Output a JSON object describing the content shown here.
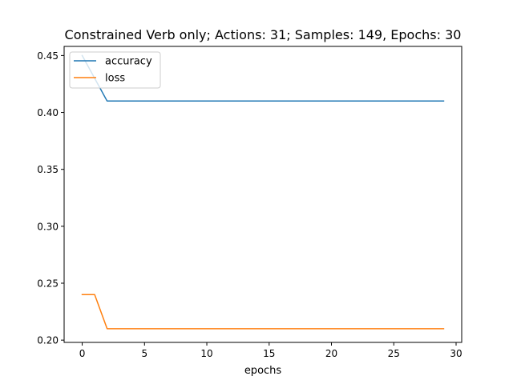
{
  "chart_data": {
    "type": "line",
    "title": "Constrained Verb only; Actions: 31; Samples: 149, Epochs: 30",
    "xlabel": "epochs",
    "ylabel": "",
    "xlim": [
      -1.45,
      30.45
    ],
    "ylim": [
      0.198,
      0.458
    ],
    "xticks": [
      0,
      5,
      10,
      15,
      20,
      25,
      30
    ],
    "yticks": [
      0.2,
      0.25,
      0.3,
      0.35,
      0.4,
      0.45
    ],
    "grid": false,
    "legend": "upper left",
    "x": [
      0,
      1,
      2,
      3,
      4,
      5,
      6,
      7,
      8,
      9,
      10,
      11,
      12,
      13,
      14,
      15,
      16,
      17,
      18,
      19,
      20,
      21,
      22,
      23,
      24,
      25,
      26,
      27,
      28,
      29
    ],
    "series": [
      {
        "name": "accuracy",
        "color": "#1f77b4",
        "values": [
          0.45,
          0.43,
          0.41,
          0.41,
          0.41,
          0.41,
          0.41,
          0.41,
          0.41,
          0.41,
          0.41,
          0.41,
          0.41,
          0.41,
          0.41,
          0.41,
          0.41,
          0.41,
          0.41,
          0.41,
          0.41,
          0.41,
          0.41,
          0.41,
          0.41,
          0.41,
          0.41,
          0.41,
          0.41,
          0.41
        ]
      },
      {
        "name": "loss",
        "color": "#ff7f0e",
        "values": [
          0.24,
          0.24,
          0.21,
          0.21,
          0.21,
          0.21,
          0.21,
          0.21,
          0.21,
          0.21,
          0.21,
          0.21,
          0.21,
          0.21,
          0.21,
          0.21,
          0.21,
          0.21,
          0.21,
          0.21,
          0.21,
          0.21,
          0.21,
          0.21,
          0.21,
          0.21,
          0.21,
          0.21,
          0.21,
          0.21
        ]
      }
    ]
  }
}
